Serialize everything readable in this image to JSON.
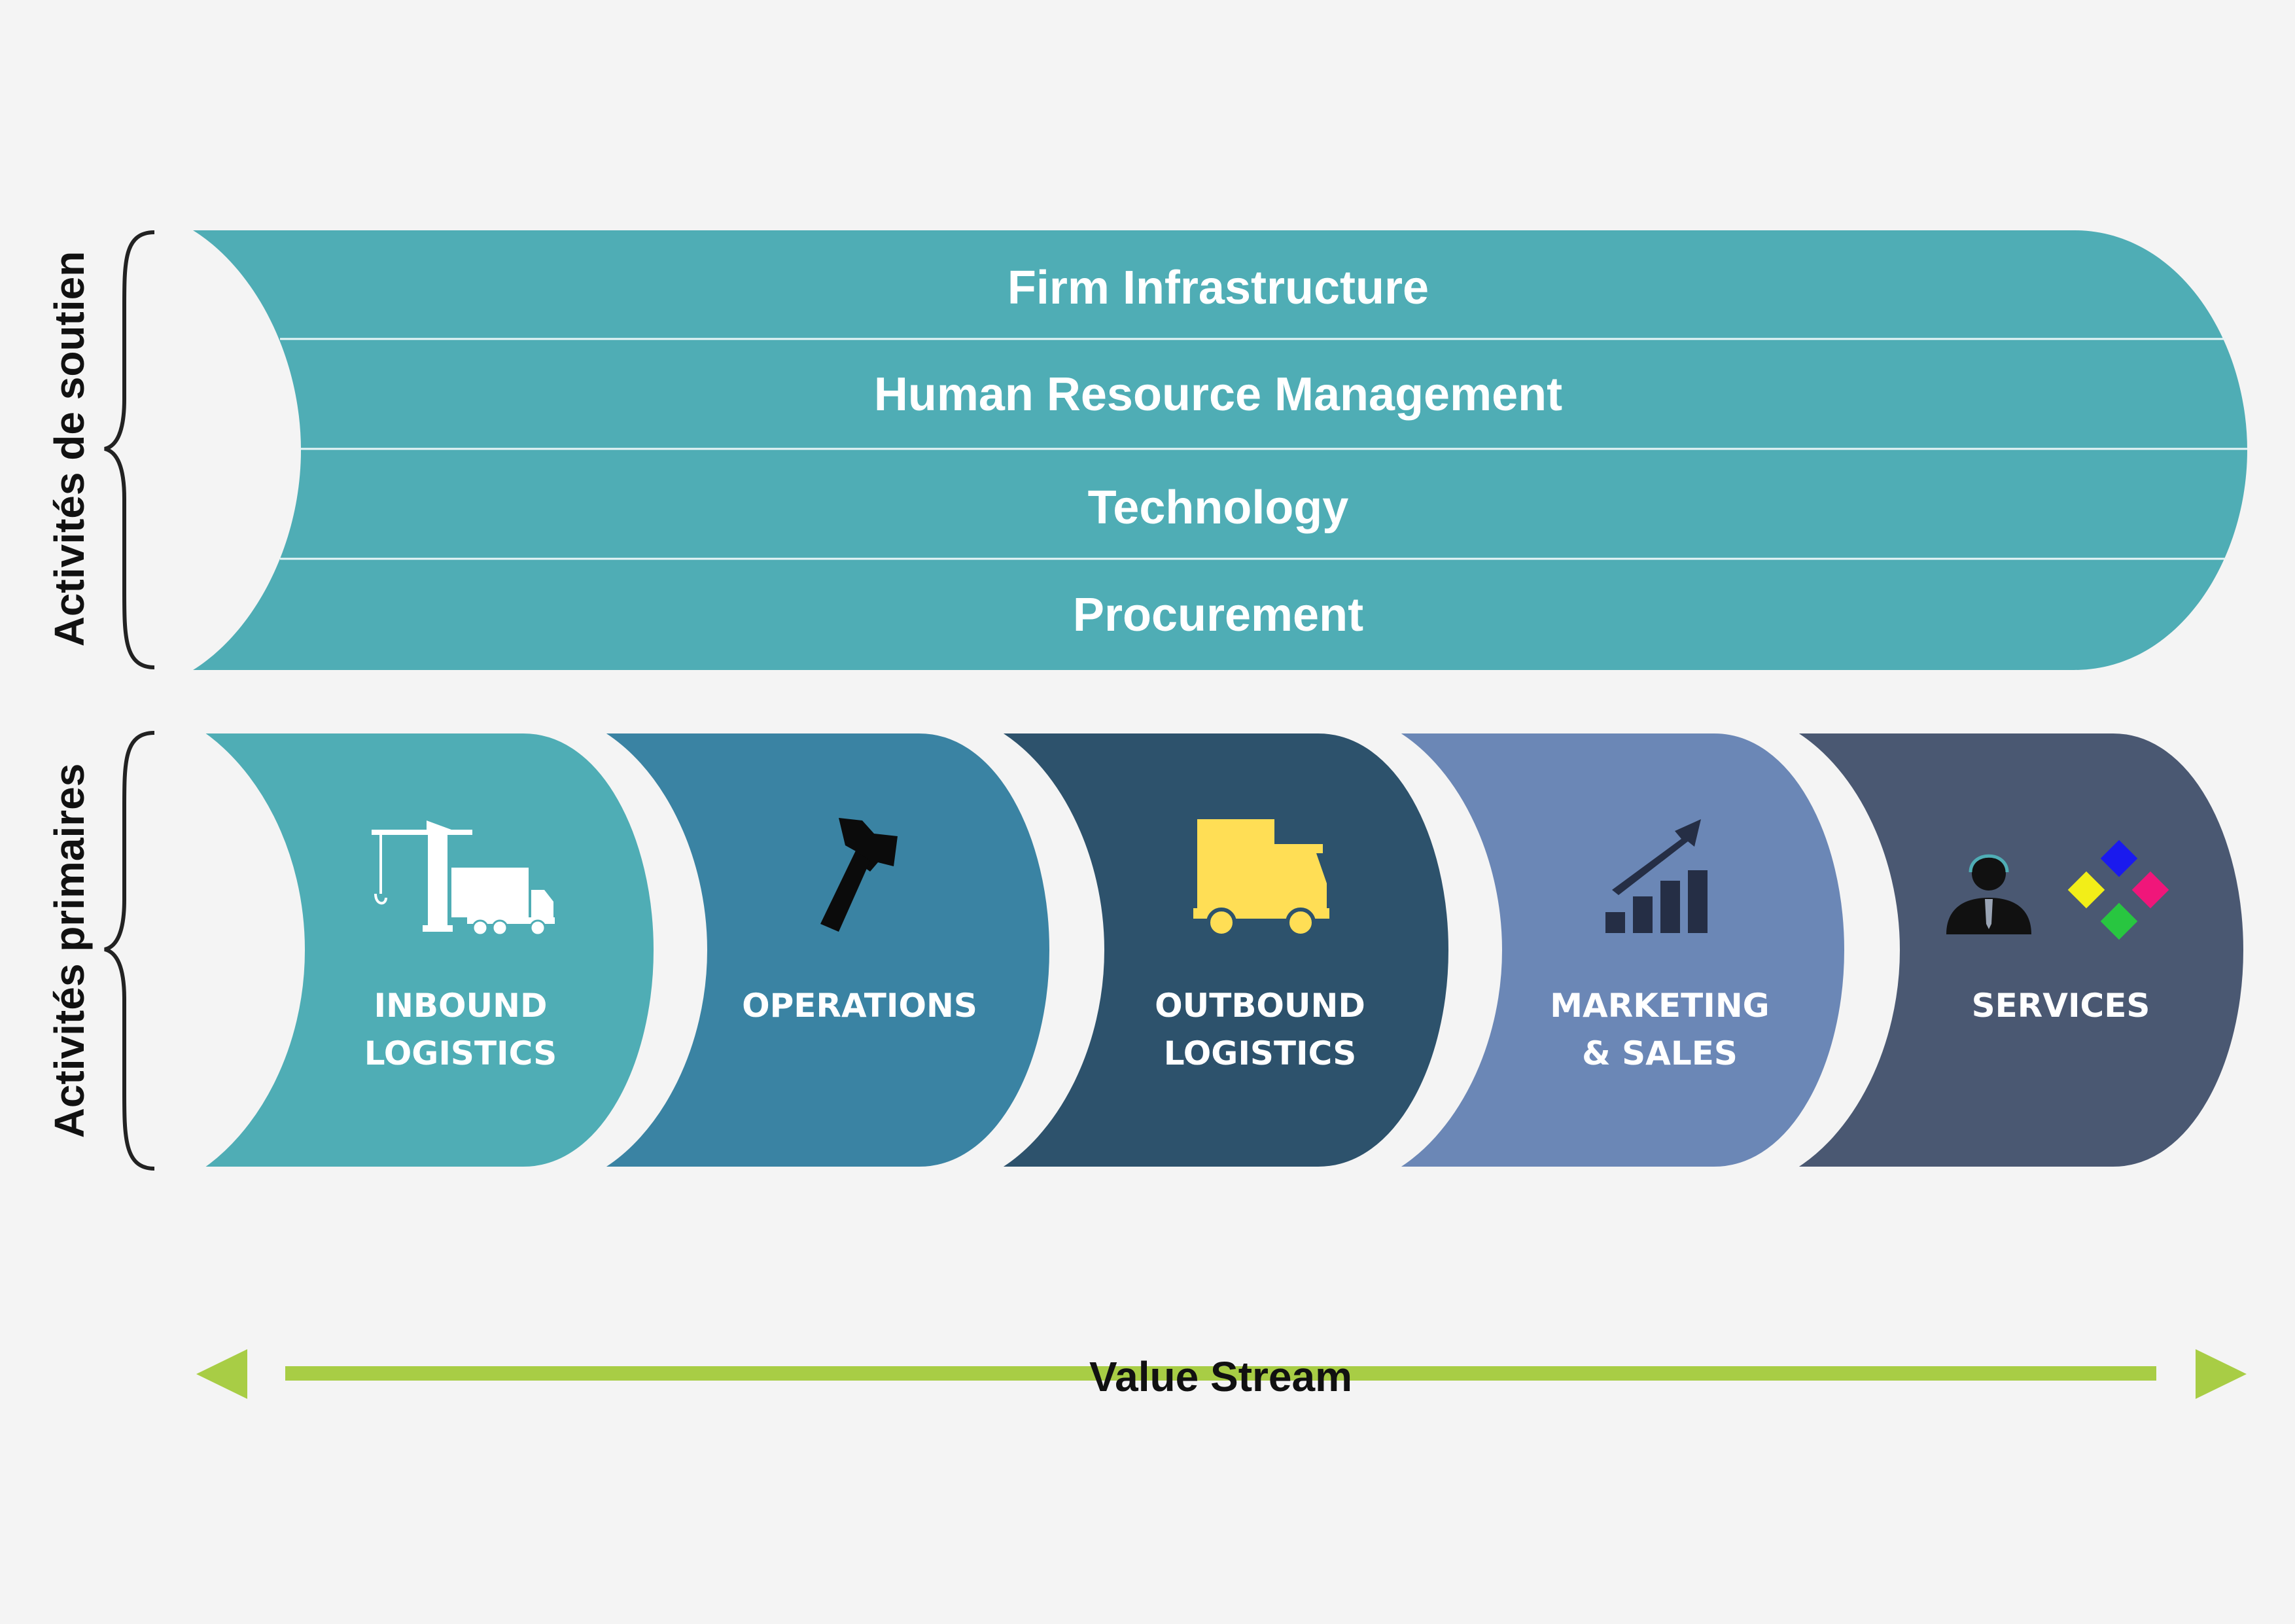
{
  "side_labels": {
    "support": "Activités de soutien",
    "primary": "Activités primaires"
  },
  "support_activities": [
    {
      "label": "Firm Infrastructure"
    },
    {
      "label": "Human Resource Management"
    },
    {
      "label": "Technology"
    },
    {
      "label": "Procurement"
    }
  ],
  "primary_activities": [
    {
      "line1": "INBOUND",
      "line2": "LOGISTICS",
      "color": "#4fadb5",
      "icon": "crane-truck-icon"
    },
    {
      "line1": "OPERATIONS",
      "line2": "",
      "color": "#3a83a3",
      "icon": "hammer-icon"
    },
    {
      "line1": "OUTBOUND",
      "line2": "LOGISTICS",
      "color": "#2d526c",
      "icon": "delivery-truck-icon"
    },
    {
      "line1": "MARKETING",
      "line2": "& SALES",
      "color": "#6b87b6",
      "icon": "growth-chart-icon"
    },
    {
      "line1": "SERVICES",
      "line2": "",
      "color": "#4a5872",
      "icon": "support-agent-icon"
    }
  ],
  "value_stream": {
    "label": "Value Stream",
    "color": "#a8cd45"
  },
  "colors": {
    "support_band": "#4fadb5",
    "background": "#f4f4f4"
  }
}
